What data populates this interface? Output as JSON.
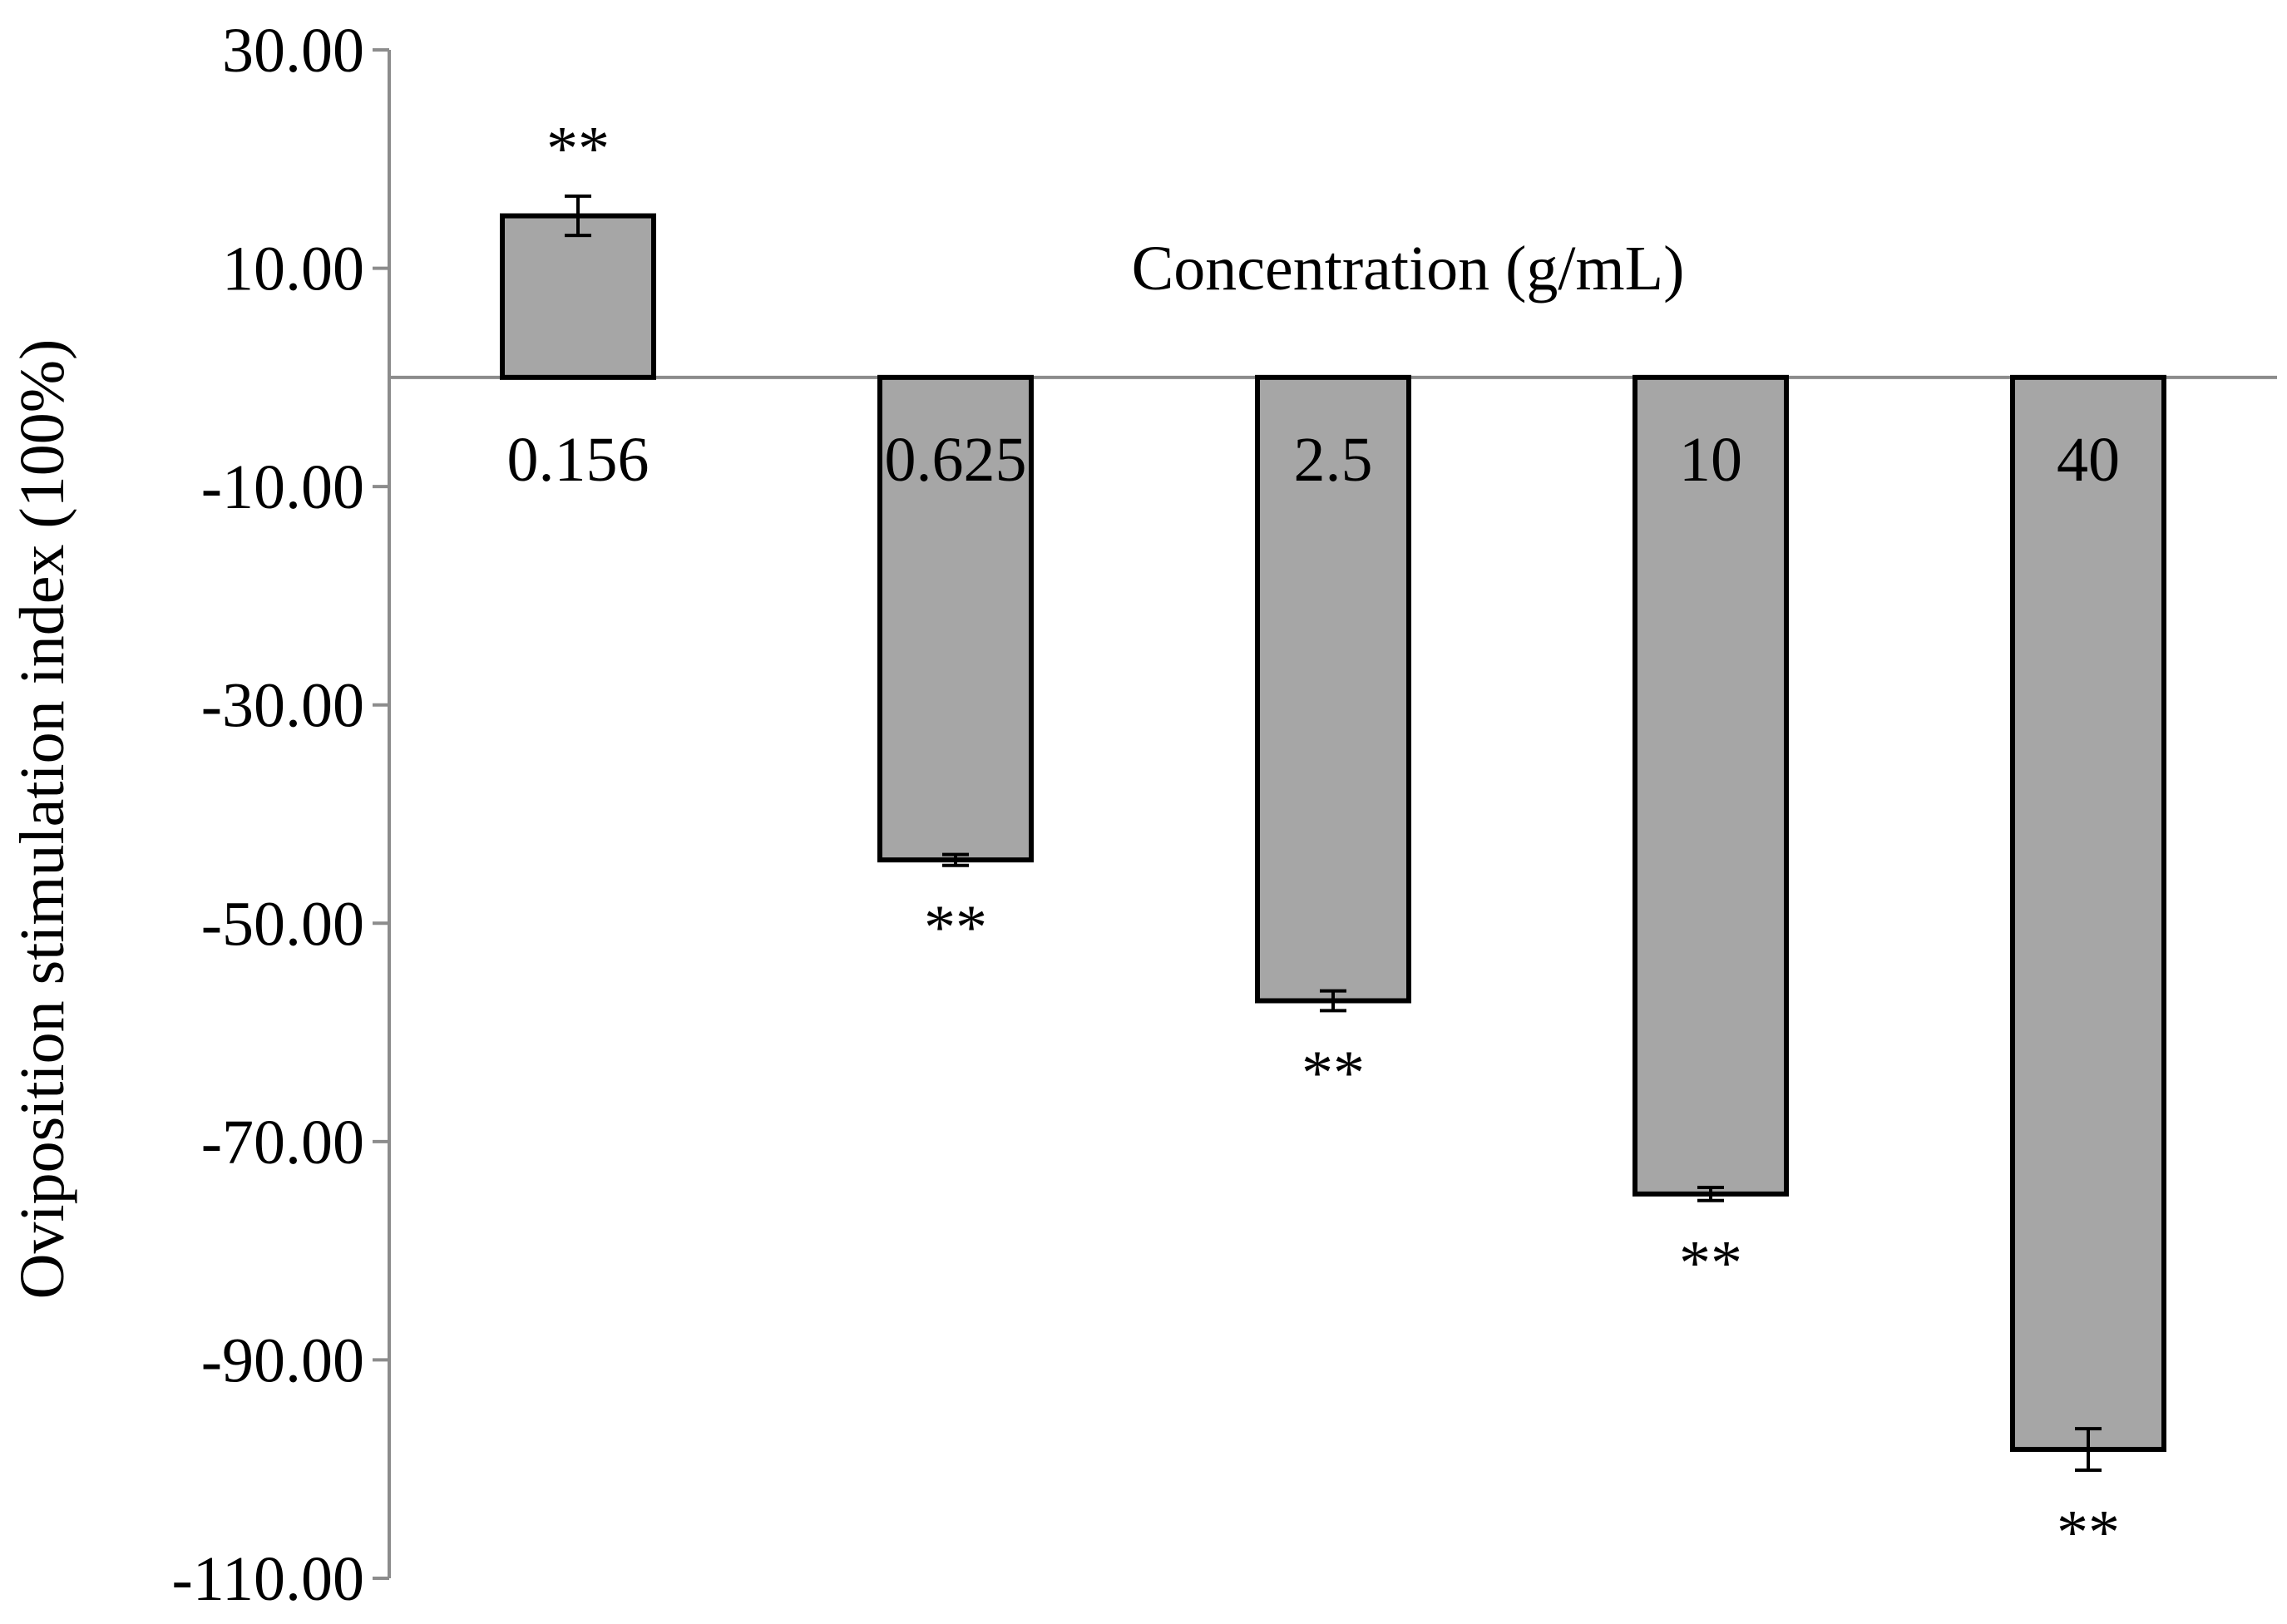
{
  "chart_data": {
    "type": "bar",
    "title": "",
    "xlabel": "Concentration (g/mL)",
    "ylabel": "Oviposition stimulation index (100%)",
    "ylim": [
      -110,
      30
    ],
    "yticks": [
      "30.00",
      "10.00",
      "-10.00",
      "-30.00",
      "-50.00",
      "-70.00",
      "-90.00",
      "-110.00"
    ],
    "ytick_values": [
      30,
      10,
      -10,
      -30,
      -50,
      -70,
      -90,
      -110
    ],
    "categories": [
      "0.156",
      "0.625",
      "2.5",
      "10",
      "40"
    ],
    "values": [
      14.8,
      -44.2,
      -57.1,
      -74.8,
      -98.2
    ],
    "errors": [
      1.8,
      0.5,
      0.9,
      0.6,
      1.9
    ],
    "significance": [
      "**",
      "**",
      "**",
      "**",
      "**"
    ],
    "grid": false,
    "legend": "none",
    "colors": {
      "bar_fill": "#a6a6a6",
      "bar_stroke": "#000000",
      "axis": "#8c8c8c",
      "text": "#000000"
    }
  }
}
